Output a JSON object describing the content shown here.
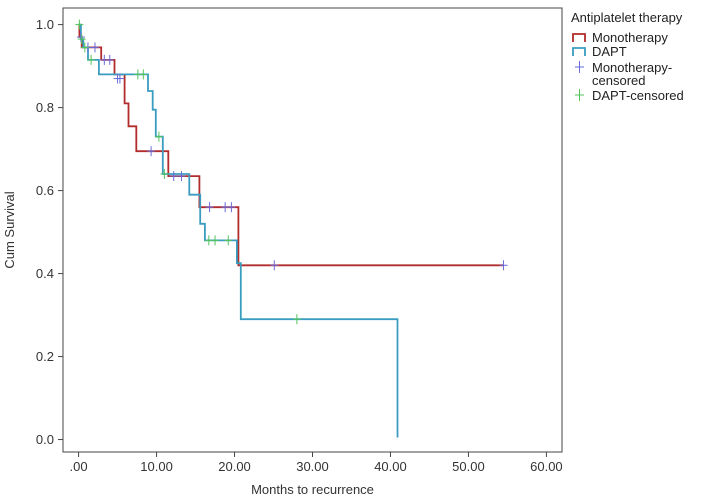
{
  "chart_data": {
    "type": "line",
    "subtype": "kaplan-meier step",
    "xlabel": "Months to recurrence",
    "ylabel": "Cum Survival",
    "xlim": [
      -2,
      62
    ],
    "ylim": [
      -0.03,
      1.04
    ],
    "x_ticks": [
      0,
      10,
      20,
      30,
      40,
      50,
      60
    ],
    "x_tick_labels": [
      ".00",
      "10.00",
      "20.00",
      "30.00",
      "40.00",
      "50.00",
      "60.00"
    ],
    "y_ticks": [
      0.0,
      0.2,
      0.4,
      0.6,
      0.8,
      1.0
    ],
    "y_tick_labels": [
      "0.0",
      "0.2",
      "0.4",
      "0.6",
      "0.8",
      "1.0"
    ],
    "grid": false,
    "legend": {
      "title": "Antiplatelet therapy",
      "position": "right",
      "entries": [
        {
          "label": "Monotherapy",
          "kind": "line",
          "color": "#b22c2c"
        },
        {
          "label": "DAPT",
          "kind": "line",
          "color": "#3a9dc0"
        },
        {
          "label": "Monotherapy-",
          "label2": "censored",
          "kind": "censor",
          "color": "#6a6ad8"
        },
        {
          "label": "DAPT-censored",
          "kind": "censor",
          "color": "#52c45a"
        }
      ]
    },
    "series": [
      {
        "name": "Monotherapy",
        "color": "#b22c2c",
        "steps": [
          [
            0,
            1.0
          ],
          [
            0.1,
            0.97
          ],
          [
            0.4,
            0.945
          ],
          [
            2.9,
            0.915
          ],
          [
            4.6,
            0.88
          ],
          [
            5.9,
            0.81
          ],
          [
            6.4,
            0.755
          ],
          [
            7.4,
            0.695
          ],
          [
            11.5,
            0.635
          ],
          [
            15.5,
            0.56
          ],
          [
            20.5,
            0.42
          ],
          [
            54.5,
            0.42
          ]
        ],
        "censored": [
          [
            0.3,
            0.97
          ],
          [
            1.2,
            0.945
          ],
          [
            2.1,
            0.945
          ],
          [
            3.3,
            0.915
          ],
          [
            4.0,
            0.915
          ],
          [
            5.0,
            0.87
          ],
          [
            5.3,
            0.87
          ],
          [
            9.3,
            0.695
          ],
          [
            12.2,
            0.635
          ],
          [
            13.2,
            0.635
          ],
          [
            16.8,
            0.56
          ],
          [
            18.8,
            0.56
          ],
          [
            19.6,
            0.56
          ],
          [
            25.1,
            0.42
          ],
          [
            54.5,
            0.42
          ]
        ]
      },
      {
        "name": "DAPT",
        "color": "#3a9dc0",
        "steps": [
          [
            0,
            1.0
          ],
          [
            0.3,
            0.965
          ],
          [
            0.6,
            0.945
          ],
          [
            1.2,
            0.915
          ],
          [
            2.6,
            0.88
          ],
          [
            8.9,
            0.84
          ],
          [
            9.5,
            0.795
          ],
          [
            9.9,
            0.73
          ],
          [
            10.8,
            0.64
          ],
          [
            14.2,
            0.59
          ],
          [
            15.6,
            0.52
          ],
          [
            16.2,
            0.48
          ],
          [
            20.3,
            0.425
          ],
          [
            20.8,
            0.29
          ],
          [
            40.9,
            0.29
          ],
          [
            40.9,
            0.005
          ]
        ],
        "censored": [
          [
            0.1,
            1.0
          ],
          [
            0.4,
            0.965
          ],
          [
            0.8,
            0.945
          ],
          [
            1.6,
            0.915
          ],
          [
            7.6,
            0.88
          ],
          [
            8.3,
            0.88
          ],
          [
            10.3,
            0.73
          ],
          [
            11.0,
            0.64
          ],
          [
            16.7,
            0.48
          ],
          [
            17.5,
            0.48
          ],
          [
            19.2,
            0.48
          ],
          [
            28.0,
            0.29
          ]
        ]
      }
    ]
  }
}
